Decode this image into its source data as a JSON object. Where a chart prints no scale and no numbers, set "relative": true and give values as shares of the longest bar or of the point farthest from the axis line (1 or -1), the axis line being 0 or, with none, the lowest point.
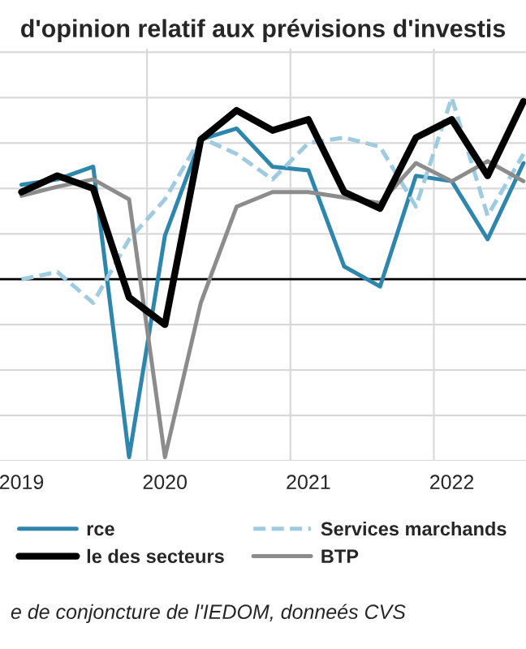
{
  "chart_data": {
    "type": "line",
    "relative": true,
    "title": "d'opinion relatif aux prévisions d'investis",
    "categories": [
      "2019",
      null,
      null,
      null,
      "2020",
      null,
      null,
      null,
      "2021",
      null,
      null,
      null,
      "2022",
      null,
      null
    ],
    "series": [
      {
        "name": "rce",
        "color": "#2f86ad",
        "values": [
          0.52,
          0.55,
          0.62,
          -0.98,
          0.24,
          0.77,
          0.83,
          0.62,
          0.6,
          0.07,
          -0.04,
          0.57,
          0.54,
          0.22,
          0.64
        ]
      },
      {
        "name": "le des secteurs",
        "color": "#000000",
        "values": [
          0.48,
          0.57,
          0.5,
          -0.1,
          -0.25,
          0.77,
          0.93,
          0.82,
          0.88,
          0.48,
          0.39,
          0.78,
          0.88,
          0.57,
          0.98
        ]
      },
      {
        "name": "Services marchands",
        "color": "#9ecbe0",
        "line_style": "dashed",
        "values": [
          0.0,
          0.04,
          -0.13,
          0.22,
          0.44,
          0.78,
          0.69,
          0.55,
          0.75,
          0.78,
          0.73,
          0.4,
          1.0,
          0.35,
          0.69
        ]
      },
      {
        "name": "BTP",
        "color": "#8c8c8c",
        "values": [
          0.46,
          0.51,
          0.55,
          0.44,
          -0.98,
          -0.13,
          0.4,
          0.48,
          0.48,
          0.45,
          0.42,
          0.64,
          0.54,
          0.65,
          0.54
        ]
      }
    ],
    "grid": true,
    "legend": "bottom",
    "marker": "none",
    "line_style": "solid",
    "annotations": [
      "e de conjoncture de l'IEDOM, donneés CVS"
    ]
  }
}
